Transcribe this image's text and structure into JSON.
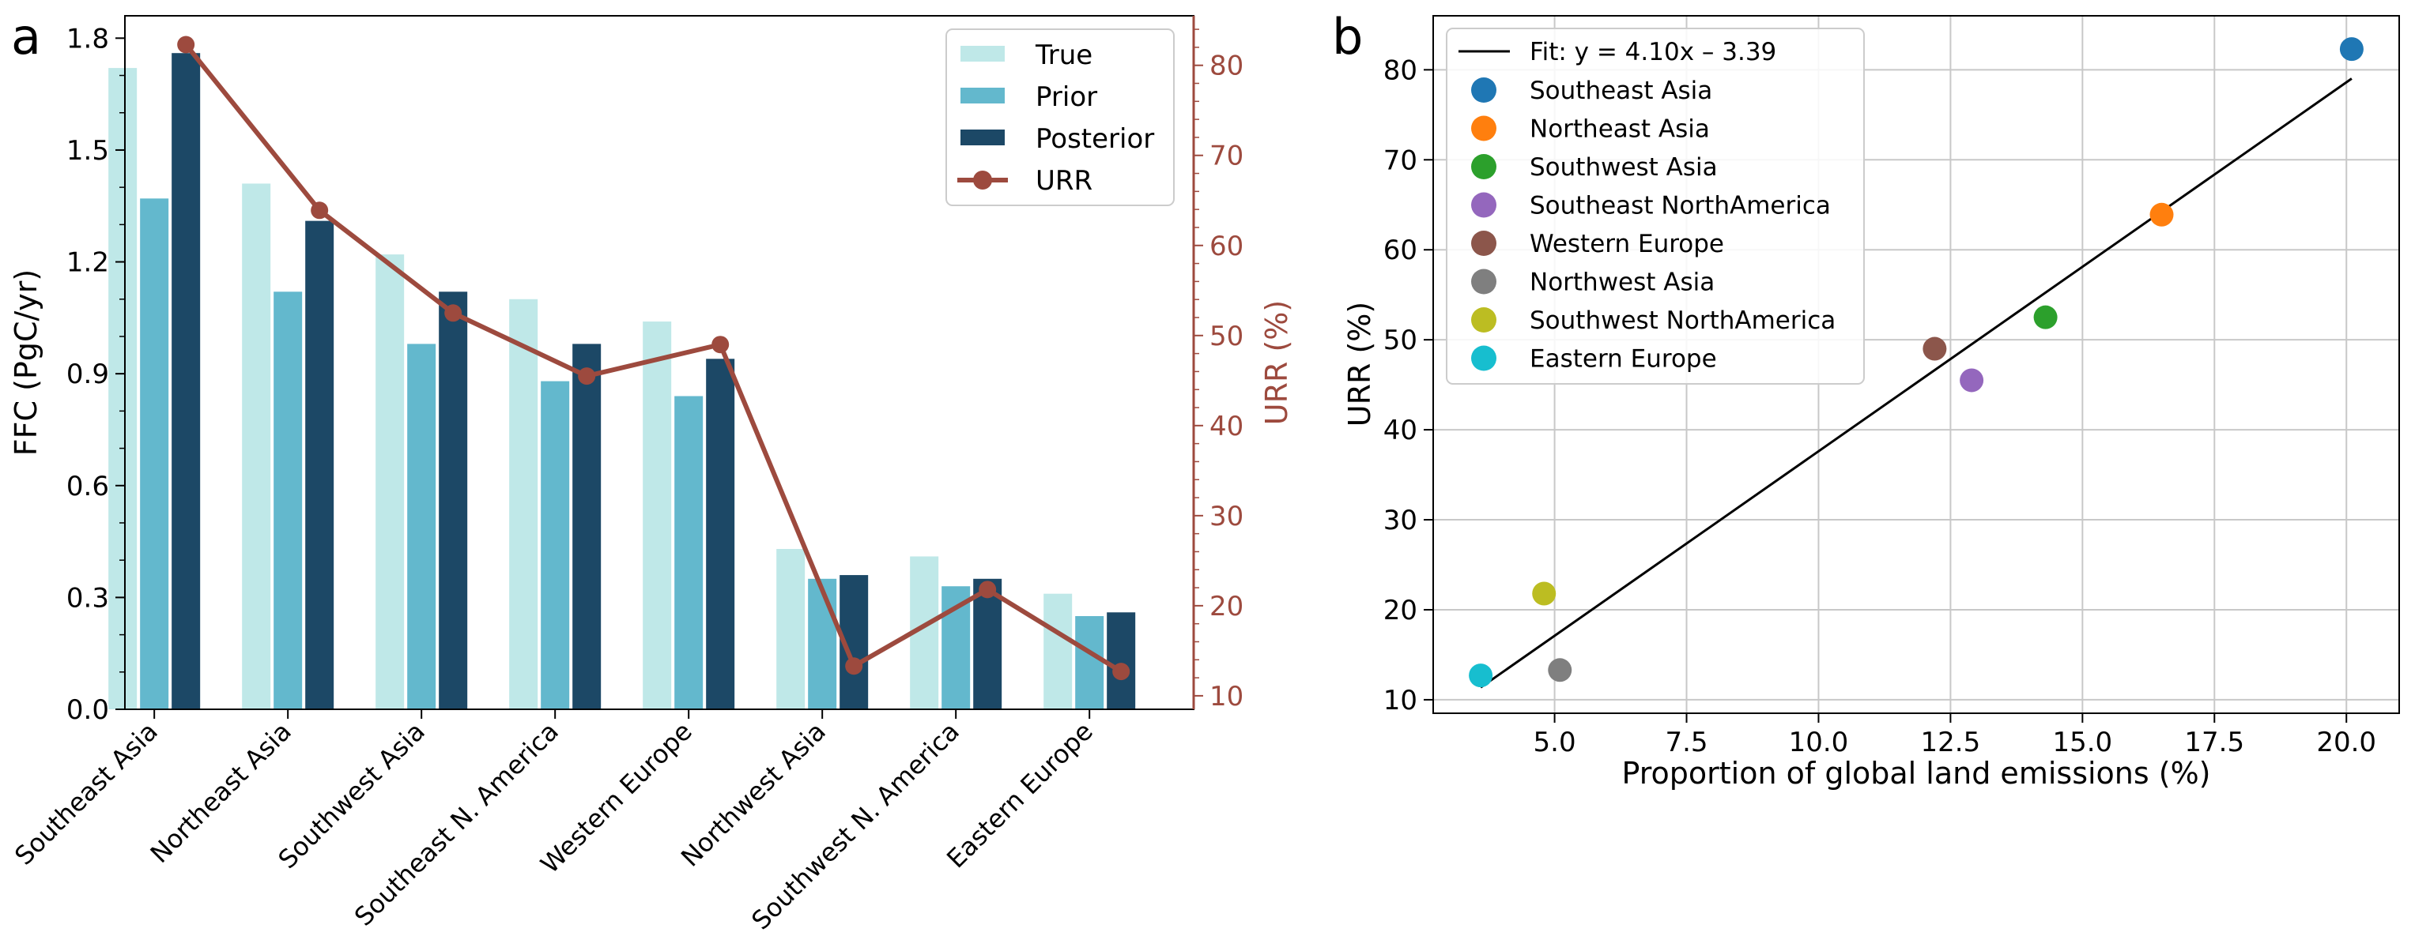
{
  "colors": {
    "true": "#bfe8e8",
    "prior": "#63b8cd",
    "posterior": "#1c4866",
    "urr": "#9d4a3e",
    "fit": "#000000",
    "grid": "#c8c8c8",
    "axis": "#000000"
  },
  "chart_data": [
    {
      "panel_label": "a",
      "type": "bar",
      "categories": [
        "Southeast Asia",
        "Northeast Asia",
        "Southwest Asia",
        "Southeast N. America",
        "Western Europe",
        "Northwest Asia",
        "Southwest N. America",
        "Eastern Europe"
      ],
      "series": [
        {
          "name": "True",
          "values": [
            1.72,
            1.41,
            1.22,
            1.1,
            1.04,
            0.43,
            0.41,
            0.31
          ]
        },
        {
          "name": "Prior",
          "values": [
            1.37,
            1.12,
            0.98,
            0.88,
            0.84,
            0.35,
            0.33,
            0.25
          ]
        },
        {
          "name": "Posterior",
          "values": [
            1.76,
            1.31,
            1.12,
            0.98,
            0.94,
            0.36,
            0.35,
            0.26
          ]
        }
      ],
      "line_series": {
        "name": "URR",
        "values": [
          82.3,
          63.9,
          52.5,
          45.5,
          49.0,
          13.3,
          21.8,
          12.7
        ]
      },
      "ylabel": "FFC (PgC/yr)",
      "y2label": "URR (%)",
      "ylim": [
        0,
        1.86
      ],
      "y2lim": [
        8.5,
        85.5
      ],
      "yticks": [
        "0.0",
        "0.3",
        "0.6",
        "0.9",
        "1.2",
        "1.5",
        "1.8"
      ],
      "y2ticks": [
        "10",
        "20",
        "30",
        "40",
        "50",
        "60",
        "70",
        "80"
      ],
      "legend": [
        "True",
        "Prior",
        "Posterior",
        "URR"
      ],
      "legend_position": "top-right"
    },
    {
      "panel_label": "b",
      "type": "scatter",
      "points": [
        {
          "name": "Southeast Asia",
          "x": 20.1,
          "y": 82.3,
          "color": "#1f77b4"
        },
        {
          "name": "Northeast Asia",
          "x": 16.5,
          "y": 63.9,
          "color": "#ff7f0e"
        },
        {
          "name": "Southwest Asia",
          "x": 14.3,
          "y": 52.5,
          "color": "#2ca02c"
        },
        {
          "name": "Southeast NorthAmerica",
          "x": 12.9,
          "y": 45.5,
          "color": "#9467bd"
        },
        {
          "name": "Western Europe",
          "x": 12.2,
          "y": 49.0,
          "color": "#8c564b"
        },
        {
          "name": "Northwest Asia",
          "x": 5.1,
          "y": 13.3,
          "color": "#7f7f7f"
        },
        {
          "name": "Southwest NorthAmerica",
          "x": 4.8,
          "y": 21.8,
          "color": "#bcbd22"
        },
        {
          "name": "Eastern Europe",
          "x": 3.6,
          "y": 12.7,
          "color": "#17becf"
        }
      ],
      "fit": {
        "label": "Fit: y = 4.10x – 3.39",
        "slope": 4.1,
        "intercept": -3.39,
        "x_range": [
          3.6,
          20.1
        ]
      },
      "xlabel": "Proportion of global land emissions (%)",
      "ylabel": "URR (%)",
      "xlim": [
        2.7,
        21.0
      ],
      "ylim": [
        8.5,
        86.0
      ],
      "xticks": [
        "5.0",
        "7.5",
        "10.0",
        "12.5",
        "15.0",
        "17.5",
        "20.0"
      ],
      "yticks": [
        "10",
        "20",
        "30",
        "40",
        "50",
        "60",
        "70",
        "80"
      ],
      "grid": true,
      "legend_position": "top-left"
    }
  ]
}
